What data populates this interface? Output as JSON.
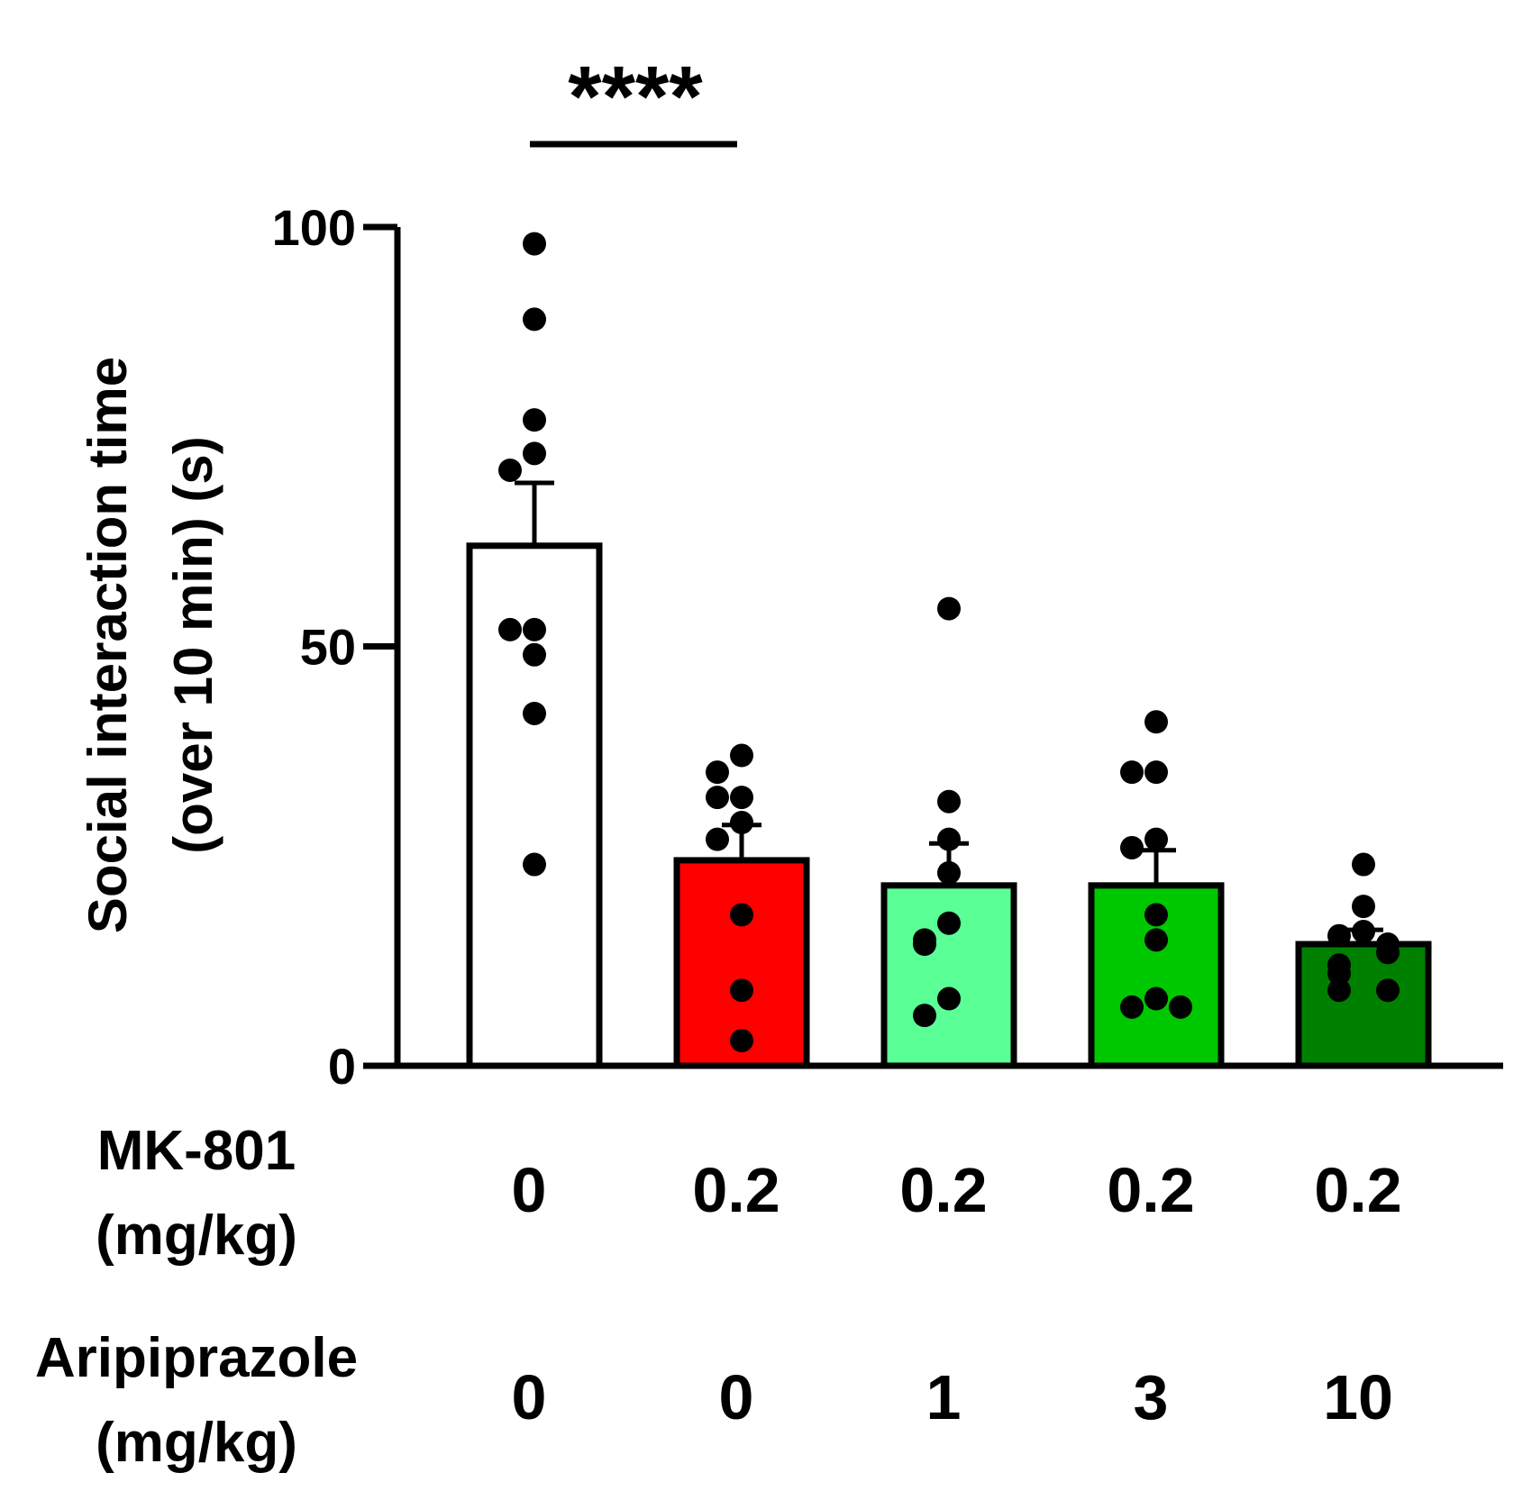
{
  "chart_data": {
    "type": "bar",
    "title": "",
    "xlabel": "",
    "ylabel": "Social interaction time\n(over 10 min) (s)",
    "ylabel_lines": [
      "Social interaction time",
      "(over 10 min) (s)"
    ],
    "ylim": [
      0,
      100
    ],
    "yticks": [
      0,
      50,
      100
    ],
    "ytick_labels": [
      "0",
      "50",
      "100"
    ],
    "row_labels": {
      "mk801": [
        "MK-801",
        "(mg/kg)"
      ],
      "aripiprazole": [
        "Aripiprazole",
        "(mg/kg)"
      ]
    },
    "groups": [
      {
        "mk801": "0",
        "aripiprazole": "0",
        "mean": 62,
        "sem": 7.5,
        "color": "#ffffff",
        "points": [
          98,
          89,
          77,
          73,
          71,
          52,
          52,
          49,
          42,
          24
        ]
      },
      {
        "mk801": "0.2",
        "aripiprazole": "0",
        "mean": 24.5,
        "sem": 4.2,
        "color": "#ff0000",
        "points": [
          37,
          35,
          32,
          32,
          29,
          27,
          18,
          9,
          3
        ]
      },
      {
        "mk801": "0.2",
        "aripiprazole": "1",
        "mean": 21.5,
        "sem": 5,
        "color": "#5aff96",
        "points": [
          54.5,
          31.5,
          27,
          23,
          17,
          15,
          14.5,
          8,
          6
        ]
      },
      {
        "mk801": "0.2",
        "aripiprazole": "3",
        "mean": 21.5,
        "sem": 4.2,
        "color": "#00c800",
        "points": [
          41,
          35,
          35,
          27,
          26,
          18,
          15,
          8,
          7,
          7
        ]
      },
      {
        "mk801": "0.2",
        "aripiprazole": "10",
        "mean": 14.5,
        "sem": 1.7,
        "color": "#008000",
        "points": [
          24,
          19,
          16,
          15.5,
          14.5,
          13.5,
          12,
          11,
          9,
          9
        ]
      }
    ],
    "significance": [
      {
        "from_group": 0,
        "to_group": 1,
        "label": "****"
      }
    ]
  }
}
